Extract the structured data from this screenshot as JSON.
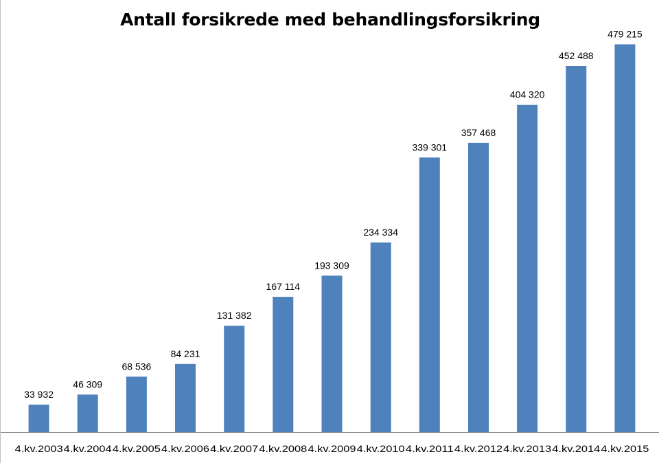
{
  "chart_data": {
    "type": "bar",
    "title": "Antall forsikrede med behandlingsforsikring",
    "xlabel": "",
    "ylabel": "",
    "categories": [
      "4.kv.2003",
      "4.kv.2004",
      "4.kv.2005",
      "4.kv.2006",
      "4.kv.2007",
      "4.kv.2008",
      "4.kv.2009",
      "4.kv.2010",
      "4.kv.2011",
      "4.kv.2012",
      "4.kv.2013",
      "4.kv.2014",
      "4.kv.2015"
    ],
    "values": [
      33932,
      46309,
      68536,
      84231,
      131382,
      167114,
      193309,
      234334,
      339301,
      357468,
      404320,
      452488,
      479215
    ],
    "data_labels": [
      "33 932",
      "46 309",
      "68 536",
      "84 231",
      "131 382",
      "167 114",
      "193 309",
      "234 334",
      "339 301",
      "357 468",
      "404 320",
      "452 488",
      "479 215"
    ],
    "ylim": [
      0,
      500000
    ],
    "grid": false,
    "legend": "none",
    "bar_color": "#4f81bd"
  }
}
